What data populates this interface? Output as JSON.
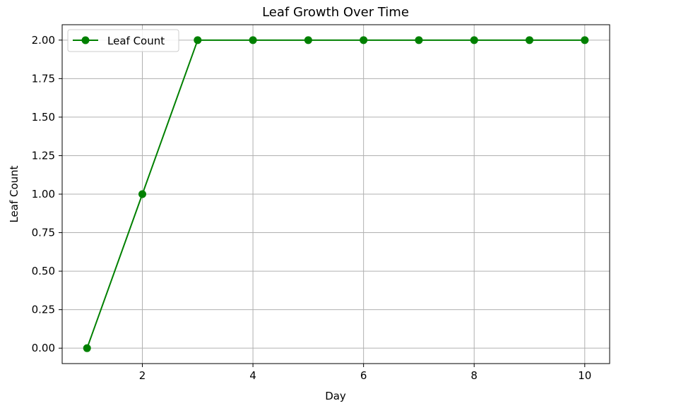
{
  "chart_data": {
    "type": "line",
    "title": "Leaf Growth Over Time",
    "xlabel": "Day",
    "ylabel": "Leaf Count",
    "xlim": [
      0.55,
      10.45
    ],
    "ylim": [
      -0.1,
      2.1
    ],
    "xticks": [
      2,
      4,
      6,
      8,
      10
    ],
    "xtick_labels": [
      "2",
      "4",
      "6",
      "8",
      "10"
    ],
    "yticks": [
      0.0,
      0.25,
      0.5,
      0.75,
      1.0,
      1.25,
      1.5,
      1.75,
      2.0
    ],
    "ytick_labels": [
      "0.00",
      "0.25",
      "0.50",
      "0.75",
      "1.00",
      "1.25",
      "1.50",
      "1.75",
      "2.00"
    ],
    "grid": true,
    "legend_position": "top-left",
    "x": [
      1,
      2,
      3,
      4,
      5,
      6,
      7,
      8,
      9,
      10
    ],
    "series": [
      {
        "name": "Leaf Count",
        "values": [
          0,
          1,
          2,
          2,
          2,
          2,
          2,
          2,
          2,
          2
        ],
        "color": "#008000",
        "marker": "circle"
      }
    ]
  }
}
